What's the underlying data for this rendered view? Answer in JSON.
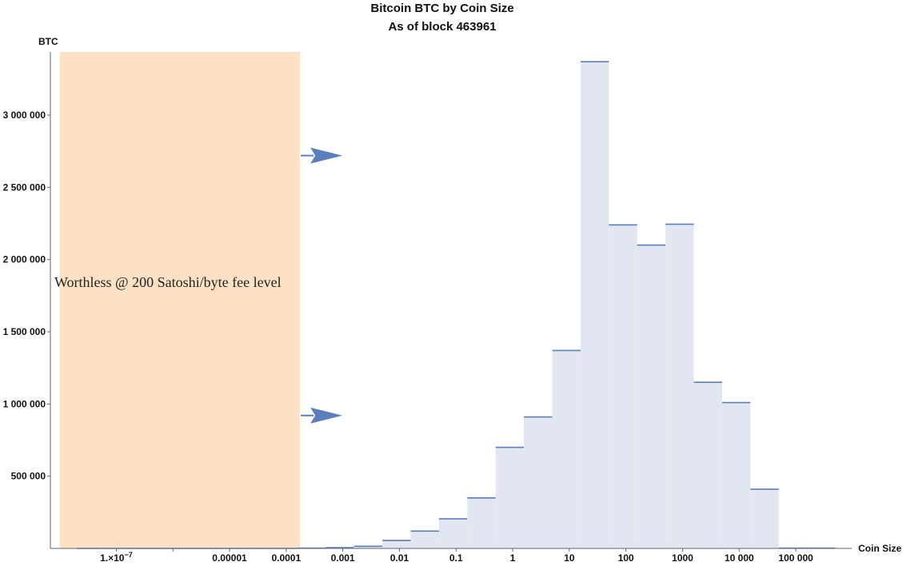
{
  "chart_data": {
    "type": "bar",
    "title": "Bitcoin BTC by Coin Size",
    "subtitle": "As of block 463961",
    "xlabel": "Coin Size",
    "ylabel": "BTC",
    "x_scale": "log",
    "x_tick_labels": [
      {
        "value": 1e-07,
        "label": "1.×10",
        "exponent": "−7"
      },
      {
        "value": 1e-05,
        "label": "0.00001"
      },
      {
        "value": 0.0001,
        "label": "0.0001"
      },
      {
        "value": 0.001,
        "label": "0.001"
      },
      {
        "value": 0.01,
        "label": "0.01"
      },
      {
        "value": 0.1,
        "label": "0.1"
      },
      {
        "value": 1,
        "label": "1"
      },
      {
        "value": 10,
        "label": "10"
      },
      {
        "value": 100,
        "label": "100"
      },
      {
        "value": 1000,
        "label": "1000"
      },
      {
        "value": 10000,
        "label": "10 000"
      },
      {
        "value": 100000,
        "label": "100 000"
      }
    ],
    "y_ticks": [
      {
        "value": 500000,
        "label": "500 000"
      },
      {
        "value": 1000000,
        "label": "1 000 000"
      },
      {
        "value": 1500000,
        "label": "1 500 000"
      },
      {
        "value": 2000000,
        "label": "2 000 000"
      },
      {
        "value": 2500000,
        "label": "2 500 000"
      },
      {
        "value": 3000000,
        "label": "3 000 000"
      }
    ],
    "xlim": [
      1e-08,
      1000000
    ],
    "ylim": [
      0,
      3400000
    ],
    "bins": [
      {
        "x_from": 2e-08,
        "x_to": 1e-06,
        "value": 0
      },
      {
        "x_from": 1e-06,
        "x_to": 0.00016,
        "value": 0
      },
      {
        "x_from": 0.00016,
        "x_to": 0.0005,
        "value": 2000
      },
      {
        "x_from": 0.0005,
        "x_to": 0.00158,
        "value": 5000
      },
      {
        "x_from": 0.00158,
        "x_to": 0.005,
        "value": 15000
      },
      {
        "x_from": 0.005,
        "x_to": 0.0158,
        "value": 55000
      },
      {
        "x_from": 0.0158,
        "x_to": 0.05,
        "value": 120000
      },
      {
        "x_from": 0.05,
        "x_to": 0.158,
        "value": 205000
      },
      {
        "x_from": 0.158,
        "x_to": 0.5,
        "value": 350000
      },
      {
        "x_from": 0.5,
        "x_to": 1.58,
        "value": 700000
      },
      {
        "x_from": 1.58,
        "x_to": 5,
        "value": 910000
      },
      {
        "x_from": 5,
        "x_to": 15.8,
        "value": 1370000
      },
      {
        "x_from": 15.8,
        "x_to": 50,
        "value": 3370000
      },
      {
        "x_from": 50,
        "x_to": 158,
        "value": 2240000
      },
      {
        "x_from": 158,
        "x_to": 500,
        "value": 2100000
      },
      {
        "x_from": 500,
        "x_to": 1580,
        "value": 2245000
      },
      {
        "x_from": 1580,
        "x_to": 5000,
        "value": 1150000
      },
      {
        "x_from": 5000,
        "x_to": 15800,
        "value": 1010000
      },
      {
        "x_from": 15800,
        "x_to": 50000,
        "value": 410000
      },
      {
        "x_from": 50000,
        "x_to": 500000,
        "value": 2000
      }
    ],
    "highlight_region": {
      "x_from": 1e-08,
      "x_to": 0.0002,
      "color": "#fde1c4",
      "text": "Worthless @ 200 Satoshi/byte fee level"
    },
    "arrows": [
      {
        "y_value": 2720000
      },
      {
        "y_value": 920000
      }
    ],
    "colors": {
      "bar_fill": "#e1e6f0",
      "bar_edge": "#5b7fbd",
      "arrow": "#5b7fbd",
      "axis": "#666666"
    },
    "grid": false,
    "legend": "none"
  }
}
